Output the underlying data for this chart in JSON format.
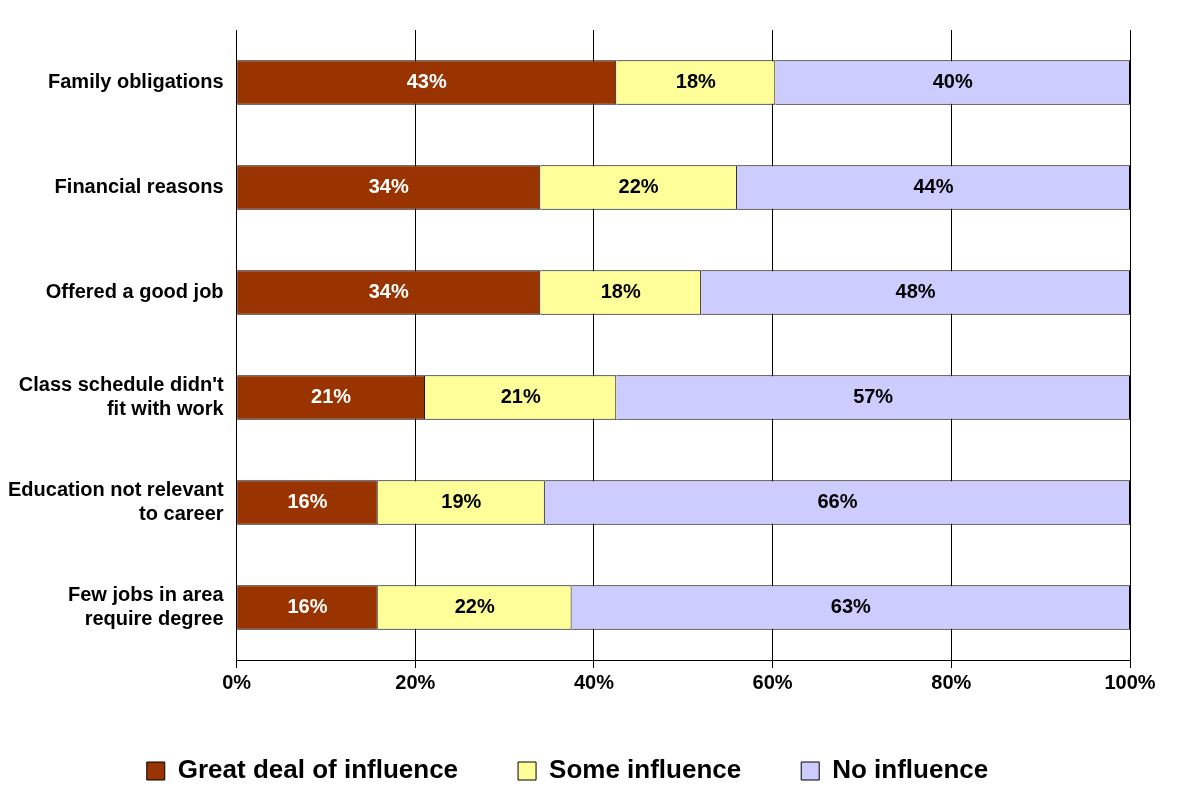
{
  "chart_data": {
    "type": "bar",
    "orientation": "horizontal",
    "stacked": true,
    "categories": [
      "Family obligations",
      "Financial reasons",
      "Offered a good job",
      "Class schedule didn't fit with work",
      "Education not relevant to career",
      "Few jobs in area require degree"
    ],
    "series": [
      {
        "name": "Great deal of influence",
        "color": "#993300",
        "values": [
          42.5,
          34,
          34,
          21.1,
          15.8,
          15.8
        ],
        "value_labels": [
          "43%",
          "34%",
          "34%",
          "21%",
          "16%",
          "16%"
        ]
      },
      {
        "name": "Some influence",
        "color": "#ffff99",
        "values": [
          17.8,
          22,
          18,
          21.4,
          18.7,
          21.7
        ],
        "value_labels": [
          "18%",
          "22%",
          "18%",
          "21%",
          "19%",
          "22%"
        ]
      },
      {
        "name": "No influence",
        "color": "#ccccff",
        "values": [
          39.7,
          44,
          48,
          57.5,
          65.5,
          62.5
        ],
        "value_labels": [
          "40%",
          "44%",
          "48%",
          "57%",
          "66%",
          "63%"
        ]
      }
    ],
    "xlim": [
      0,
      100
    ],
    "xticks": [
      {
        "value": 0,
        "label": "0%"
      },
      {
        "value": 20,
        "label": "20%"
      },
      {
        "value": 40,
        "label": "40%"
      },
      {
        "value": 60,
        "label": "60%"
      },
      {
        "value": 80,
        "label": "80%"
      },
      {
        "value": 100,
        "label": "100%"
      }
    ],
    "grid": "x",
    "legend": "bottom"
  }
}
